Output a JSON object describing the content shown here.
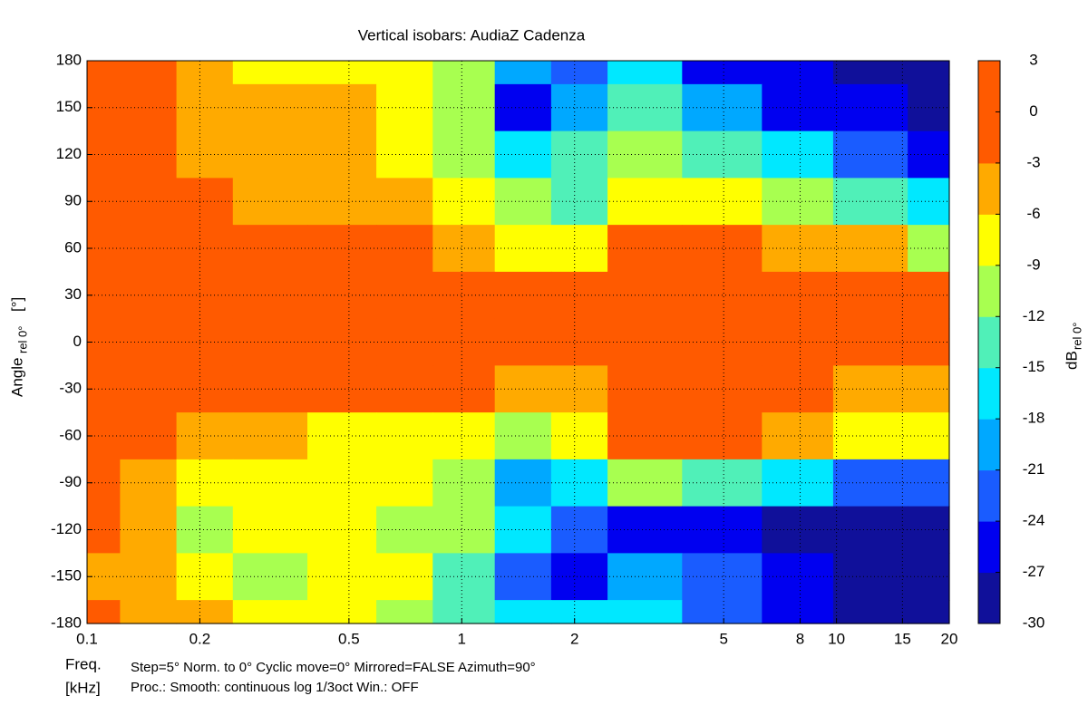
{
  "chart_data": {
    "type": "contour",
    "title": "Vertical isobars: AudiaZ  Cadenza",
    "ylabel": "Angle",
    "ylabel_sub": "rel 0°",
    "ylabel_unit": "[°]",
    "xlabel": "Freq.",
    "xlabel_unit": "[kHz]",
    "notes": [
      "Step=5°   Norm. to 0°   Cyclic move=0°   Mirrored=FALSE   Azimuth=90°",
      "Proc.: Smooth: continuous log 1/3oct    Win.: OFF"
    ],
    "colorbar_label": "dB",
    "colorbar_label_sub": "rel 0°",
    "xscale": "log",
    "grid": true,
    "xlim": [
      0.1,
      20
    ],
    "xticks": [
      0.1,
      0.2,
      0.5,
      1,
      2,
      5,
      8,
      10,
      15,
      20
    ],
    "ylim": [
      -180,
      180
    ],
    "yticks": [
      -180,
      -150,
      -120,
      -90,
      -60,
      -30,
      0,
      30,
      60,
      90,
      120,
      150,
      180
    ],
    "clim": [
      -30,
      3
    ],
    "cticks": [
      -30,
      -27,
      -24,
      -21,
      -18,
      -15,
      -12,
      -9,
      -6,
      -3,
      0,
      3
    ],
    "colors": [
      "#10109a",
      "#0000f0",
      "#1a5cff",
      "#00a8ff",
      "#00e8ff",
      "#50f0b8",
      "#a8ff50",
      "#ffff00",
      "#ffaa00",
      "#ff5a00",
      "#ff5a00"
    ],
    "x": [
      0.1,
      0.15,
      0.2,
      0.3,
      0.5,
      0.7,
      1,
      1.5,
      2,
      3,
      5,
      8,
      12,
      20
    ],
    "y": [
      180,
      150,
      120,
      90,
      60,
      30,
      0,
      -30,
      -60,
      -90,
      -120,
      -150,
      -180
    ],
    "z": [
      [
        -1,
        -1,
        -5,
        -7,
        -7,
        -9,
        -12,
        -20,
        -22,
        -18,
        -27,
        -25,
        -28,
        -28
      ],
      [
        -1,
        -2,
        -4,
        -6,
        -6,
        -8,
        -11,
        -25,
        -20,
        -15,
        -20,
        -25,
        -27,
        -28
      ],
      [
        -1,
        -2,
        -4,
        -6,
        -6,
        -7,
        -10,
        -16,
        -14,
        -10,
        -14,
        -18,
        -22,
        -26
      ],
      [
        -1,
        -1,
        -2,
        -4,
        -5,
        -6,
        -8,
        -12,
        -15,
        -8,
        -8,
        -10,
        -14,
        -16
      ],
      [
        -1,
        -1,
        -1,
        -2,
        -2,
        -2,
        -4,
        -7,
        -9,
        -2,
        -3,
        -4,
        -6,
        -10
      ],
      [
        0,
        0,
        0,
        0,
        0,
        0,
        -1,
        -1,
        -1,
        -1,
        -1,
        -1,
        -1,
        -2
      ],
      [
        0,
        0,
        0,
        0,
        0,
        0,
        0,
        0,
        0,
        0,
        0,
        0,
        0,
        0
      ],
      [
        0,
        0,
        -1,
        -1,
        -1,
        -2,
        -3,
        -4,
        -5,
        -2,
        -1,
        -3,
        -4,
        -5
      ],
      [
        -1,
        -3,
        -5,
        -6,
        -7,
        -8,
        -9,
        -10,
        -8,
        -1,
        -2,
        -6,
        -8,
        -9
      ],
      [
        -1,
        -4,
        -8,
        -8,
        -8,
        -9,
        -11,
        -20,
        -18,
        -12,
        -13,
        -18,
        -22,
        -24
      ],
      [
        -3,
        -4,
        -10,
        -9,
        -8,
        -10,
        -12,
        -18,
        -22,
        -26,
        -27,
        -28,
        -28,
        -29
      ],
      [
        -4,
        -5,
        -7,
        -10,
        -7,
        -9,
        -13,
        -22,
        -25,
        -20,
        -24,
        -27,
        -28,
        -29
      ],
      [
        -2,
        -4,
        -6,
        -7,
        -8,
        -10,
        -14,
        -18,
        -17,
        -16,
        -22,
        -26,
        -28,
        -29
      ]
    ]
  }
}
